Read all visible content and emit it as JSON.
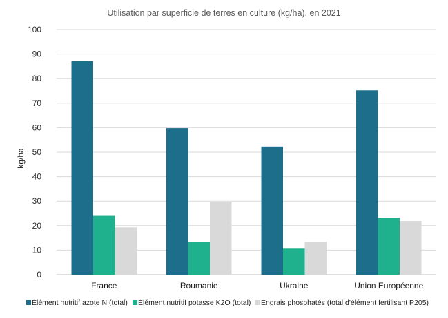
{
  "chart_data": {
    "type": "bar",
    "title": "Utilisation par superficie de terres en culture (kg/ha), en 2021",
    "xlabel": "",
    "ylabel": "kg/ha",
    "ylim": [
      0,
      100
    ],
    "yticks": [
      0,
      10,
      20,
      30,
      40,
      50,
      60,
      70,
      80,
      90,
      100
    ],
    "grid": true,
    "legend_position": "bottom",
    "categories": [
      "France",
      "Roumanie",
      "Ukraine",
      "Union Européenne"
    ],
    "series": [
      {
        "name": "Élément nutritif azote N (total)",
        "color": "#1d6e8a",
        "values": [
          87.2,
          59.8,
          52.3,
          75.2
        ]
      },
      {
        "name": "Élément nutritif potasse K2O (total)",
        "color": "#1fb08e",
        "values": [
          24.0,
          13.2,
          10.6,
          23.2
        ]
      },
      {
        "name": "Engrais phosphatés (total d'élément fertilisant P205)",
        "color": "#d9d9d9",
        "values": [
          19.3,
          29.6,
          13.4,
          21.9
        ]
      }
    ]
  }
}
